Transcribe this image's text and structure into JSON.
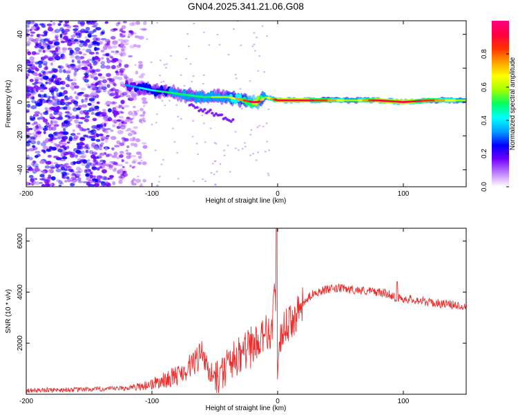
{
  "title": "GN04.2025.341.21.06.G08",
  "chart_data": [
    {
      "type": "heatmap",
      "name": "spectrogram",
      "xlabel": "Height of straight line (km)",
      "ylabel": "Frequency (Hz)",
      "xlim": [
        -200,
        150
      ],
      "ylim": [
        -50,
        48
      ],
      "xticks": [
        -200,
        -100,
        0,
        100
      ],
      "yticks": [
        -40,
        -20,
        0,
        20,
        40
      ],
      "colorbar": {
        "label": "Normalized spectral amplitude",
        "range": [
          0,
          1
        ],
        "ticks": [
          "0.0",
          "0.2",
          "0.4",
          "0.6",
          "0.8"
        ],
        "colors": [
          "#ffffff",
          "#c080ff",
          "#7000ff",
          "#0000ff",
          "#00a0ff",
          "#00ffff",
          "#00ff60",
          "#a0ff00",
          "#ffff00",
          "#ffa000",
          "#ff3000",
          "#ff0040",
          "#ff0080"
        ]
      },
      "ridge": {
        "x": [
          -120,
          -100,
          -80,
          -60,
          -40,
          -20,
          -15,
          -10,
          0,
          20,
          40,
          60,
          80,
          100,
          120,
          150
        ],
        "frequency": [
          10,
          7,
          5,
          3,
          3,
          0,
          0,
          3,
          1,
          1,
          1,
          1,
          1,
          0,
          1,
          1
        ],
        "amplitude": [
          0.3,
          0.45,
          0.5,
          0.5,
          0.6,
          0.9,
          0.95,
          0.5,
          0.95,
          0.95,
          0.8,
          0.55,
          0.95,
          0.95,
          0.85,
          0.55
        ]
      },
      "noise_region_x": [
        -200,
        -115
      ]
    },
    {
      "type": "line",
      "name": "snr",
      "xlabel": "Height of straight line (km)",
      "ylabel": "SNR (10 * v/v)",
      "xlim": [
        -200,
        150
      ],
      "ylim": [
        0,
        6500
      ],
      "xticks": [
        -200,
        -100,
        0,
        100
      ],
      "yticks": [
        2000,
        4000,
        6000
      ],
      "series": [
        {
          "name": "SNR",
          "color": "#ee2c2c",
          "x": [
            -200,
            -180,
            -160,
            -140,
            -120,
            -110,
            -100,
            -90,
            -80,
            -75,
            -70,
            -65,
            -60,
            -55,
            -50,
            -45,
            -40,
            -35,
            -30,
            -25,
            -20,
            -15,
            -10,
            -5,
            -2,
            0,
            2,
            5,
            10,
            15,
            20,
            25,
            30,
            40,
            50,
            60,
            70,
            80,
            90,
            95,
            100,
            110,
            120,
            130,
            140,
            150
          ],
          "y": [
            150,
            170,
            180,
            200,
            240,
            300,
            400,
            550,
            750,
            900,
            1100,
            1300,
            1600,
            800,
            500,
            700,
            1100,
            1300,
            1500,
            1700,
            1900,
            2100,
            2500,
            2300,
            4500,
            300,
            2000,
            2600,
            2800,
            3100,
            3500,
            3800,
            4000,
            4100,
            4150,
            4100,
            4050,
            4000,
            3900,
            3750,
            3750,
            3700,
            3600,
            3550,
            3500,
            3450
          ]
        }
      ]
    }
  ]
}
